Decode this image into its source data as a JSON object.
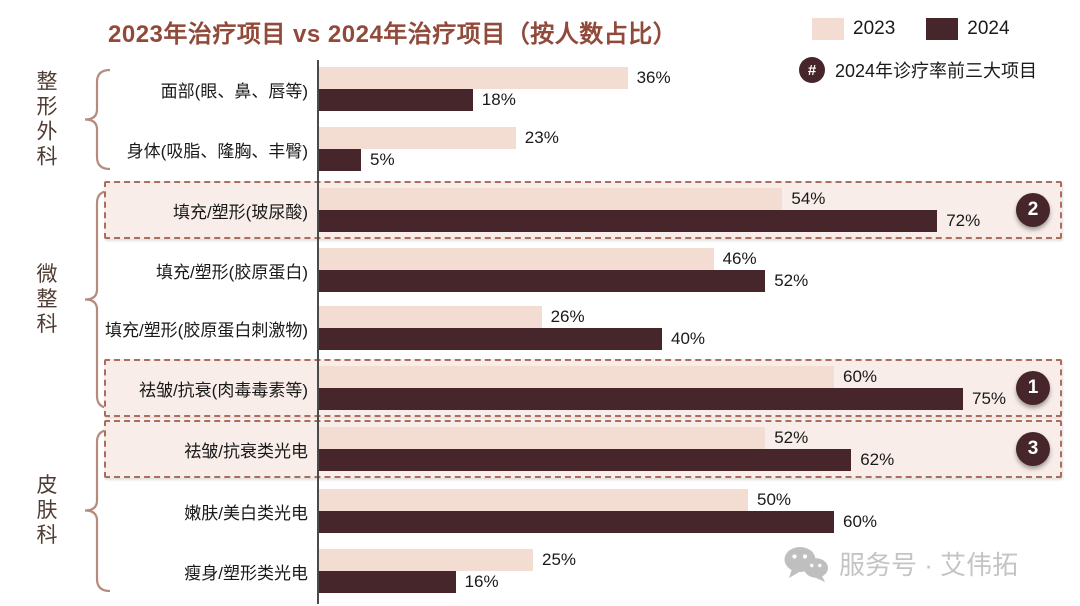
{
  "header": {
    "title": "2023年治疗项目 vs 2024年治疗项目（按人数占比）"
  },
  "legend": {
    "items": [
      {
        "label": "2023",
        "color": "#F3DCD2"
      },
      {
        "label": "2024",
        "color": "#46262B"
      }
    ],
    "note_badge": "#",
    "note_text": "2024年诊疗率前三大项目"
  },
  "watermark": {
    "icon": "wechat-icon",
    "text": "服务号 · 艾伟拓"
  },
  "colors": {
    "c2023": "#F3DCD2",
    "c2024": "#46262B",
    "title": "#91493A",
    "dash": "#AC6E5C",
    "boxfill": "#F8EDE8",
    "brace": "#B58B7D",
    "grouptext": "#503C34",
    "ink": "#1A1A1A",
    "watermark": "#C4C4C4"
  },
  "chart_data": {
    "type": "bar",
    "orientation": "horizontal",
    "title": "2023年治疗项目 vs 2024年治疗项目（按人数占比）",
    "unit": "%",
    "xlim": [
      0,
      87
    ],
    "grid": false,
    "legend_position": "top-right",
    "series_names": [
      "2023",
      "2024"
    ],
    "groups": [
      {
        "label": "整形外科",
        "row_indexes": [
          0,
          1
        ]
      },
      {
        "label": "微整科",
        "row_indexes": [
          2,
          3,
          4,
          5
        ]
      },
      {
        "label": "皮肤科",
        "row_indexes": [
          6,
          7,
          8
        ]
      }
    ],
    "rows": [
      {
        "label": "面部(眼、鼻、唇等)",
        "values": {
          "2023": 36,
          "2024": 18
        },
        "rank": null
      },
      {
        "label": "身体(吸脂、隆胸、丰臀)",
        "values": {
          "2023": 23,
          "2024": 5
        },
        "rank": null
      },
      {
        "label": "填充/塑形(玻尿酸)",
        "values": {
          "2023": 54,
          "2024": 72
        },
        "rank": "2"
      },
      {
        "label": "填充/塑形(胶原蛋白)",
        "values": {
          "2023": 46,
          "2024": 52
        },
        "rank": null
      },
      {
        "label": "填充/塑形(胶原蛋白刺激物)",
        "values": {
          "2023": 26,
          "2024": 40
        },
        "rank": null
      },
      {
        "label": "祛皱/抗衰(肉毒毒素等)",
        "values": {
          "2023": 60,
          "2024": 75
        },
        "rank": "1"
      },
      {
        "label": "祛皱/抗衰类光电",
        "values": {
          "2023": 52,
          "2024": 62
        },
        "rank": "3"
      },
      {
        "label": "嫩肤/美白类光电",
        "values": {
          "2023": 50,
          "2024": 60
        },
        "rank": null
      },
      {
        "label": "瘦身/塑形类光电",
        "values": {
          "2023": 25,
          "2024": 16
        },
        "rank": null
      }
    ]
  }
}
